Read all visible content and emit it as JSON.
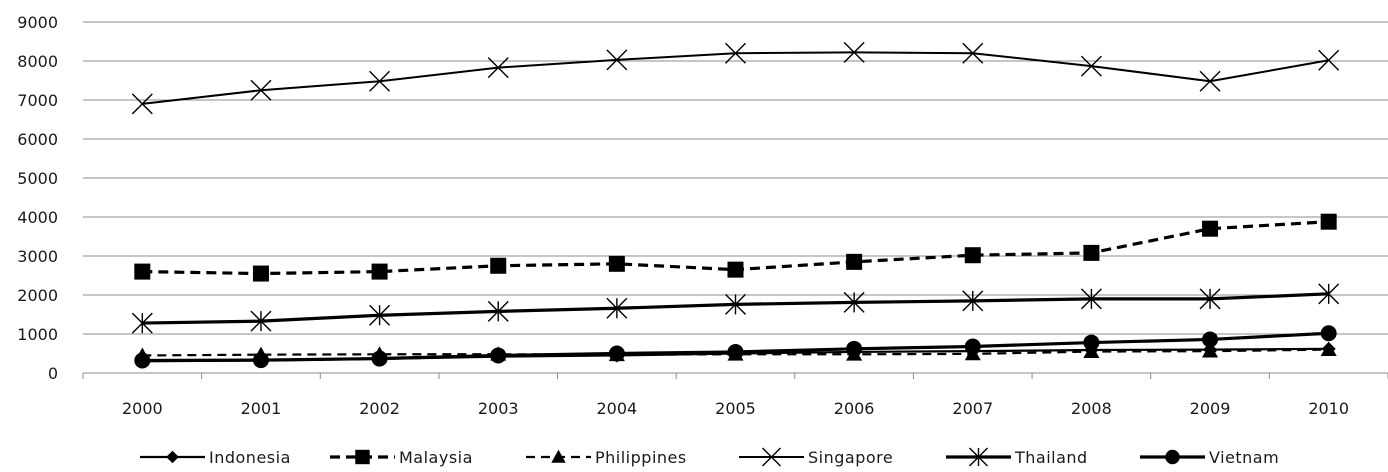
{
  "chart_data": {
    "type": "line",
    "title": "",
    "xlabel": "",
    "ylabel": "",
    "ylim": [
      0,
      9000
    ],
    "grid": true,
    "legend_position": "bottom",
    "x": [
      "2000",
      "2001",
      "2002",
      "2003",
      "2004",
      "2005",
      "2006",
      "2007",
      "2008",
      "2009",
      "2010"
    ],
    "yticks": [
      "0",
      "1000",
      "2000",
      "3000",
      "4000",
      "5000",
      "6000",
      "7000",
      "8000",
      "9000"
    ],
    "series": [
      {
        "name": "Indonesia",
        "marker": "diamond",
        "line": "solid",
        "values": [
          300,
          320,
          360,
          420,
          450,
          500,
          540,
          560,
          590,
          600,
          620
        ]
      },
      {
        "name": "Malaysia",
        "marker": "square",
        "line": "dashed-bold",
        "values": [
          2600,
          2550,
          2600,
          2750,
          2800,
          2650,
          2850,
          3020,
          3080,
          3700,
          3880
        ]
      },
      {
        "name": "Philippines",
        "marker": "triangle",
        "line": "dashed",
        "values": [
          450,
          470,
          480,
          480,
          470,
          480,
          480,
          490,
          550,
          560,
          600
        ]
      },
      {
        "name": "Singapore",
        "marker": "x",
        "line": "solid-thin",
        "values": [
          6900,
          7250,
          7480,
          7830,
          8030,
          8200,
          8220,
          8200,
          7870,
          7480,
          8020
        ]
      },
      {
        "name": "Thailand",
        "marker": "asterisk",
        "line": "solid-bold",
        "values": [
          1280,
          1330,
          1480,
          1580,
          1660,
          1760,
          1810,
          1850,
          1900,
          1900,
          2030
        ]
      },
      {
        "name": "Vietnam",
        "marker": "circle",
        "line": "solid-bold",
        "values": [
          320,
          330,
          370,
          450,
          500,
          540,
          620,
          680,
          780,
          860,
          1020
        ]
      }
    ]
  }
}
